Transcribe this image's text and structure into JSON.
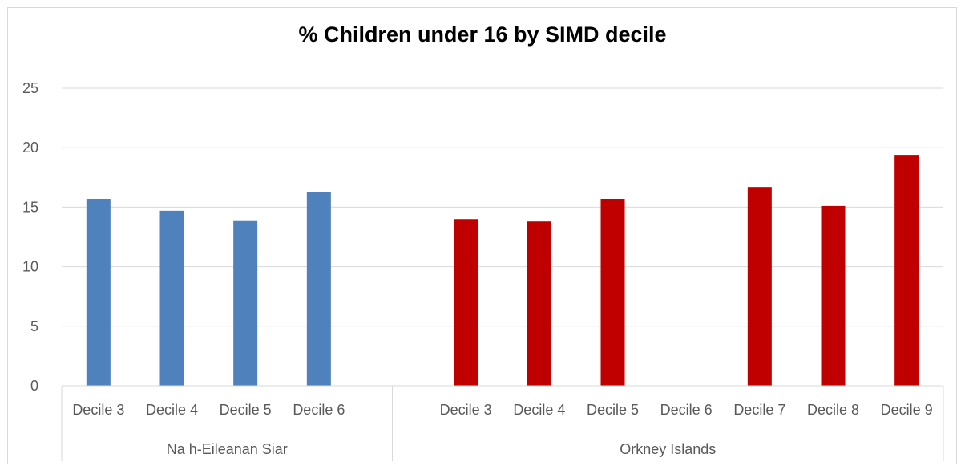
{
  "chart_data": {
    "type": "bar",
    "title": "% Children under 16 by SIMD decile",
    "xlabel": "",
    "ylabel": "",
    "ylim": [
      0,
      25
    ],
    "yticks": [
      "0",
      "5",
      "10",
      "15",
      "20",
      "25"
    ],
    "grid": true,
    "legend": "none",
    "groups": [
      {
        "name": "Na h-Eileanan Siar",
        "color": "#4f81bd",
        "categories": [
          "Decile 3",
          "Decile 4",
          "Decile 5",
          "Decile 6"
        ],
        "values": [
          15.7,
          14.7,
          13.9,
          16.3
        ]
      },
      {
        "name": "Orkney Islands",
        "color": "#c00000",
        "categories": [
          "Decile 3",
          "Decile 4",
          "Decile 5",
          "Decile 6",
          "Decile 7",
          "Decile 8",
          "Decile 9"
        ],
        "values": [
          14.0,
          13.8,
          15.7,
          null,
          16.7,
          15.1,
          19.4
        ]
      }
    ]
  }
}
